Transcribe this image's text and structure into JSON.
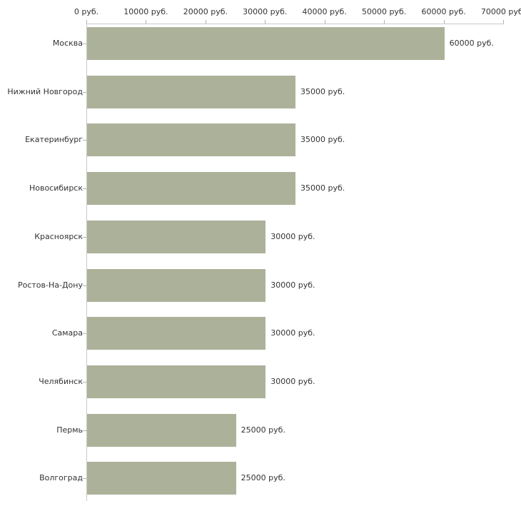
{
  "chart_data": {
    "type": "bar",
    "orientation": "horizontal",
    "title": "",
    "categories": [
      "Москва",
      "Нижний Новгород",
      "Екатеринбург",
      "Новосибирск",
      "Красноярск",
      "Ростов-На-Дону",
      "Самара",
      "Челябинск",
      "Пермь",
      "Волгоград"
    ],
    "values": [
      60000,
      35000,
      35000,
      35000,
      30000,
      30000,
      30000,
      30000,
      25000,
      25000
    ],
    "value_labels": [
      "60000 руб.",
      "35000 руб.",
      "35000 руб.",
      "35000 руб.",
      "30000 руб.",
      "30000 руб.",
      "30000 руб.",
      "30000 руб.",
      "25000 руб.",
      "25000 руб."
    ],
    "x_axis": {
      "position": "top",
      "unit": "руб.",
      "range": [
        0,
        70000
      ],
      "tick_values": [
        0,
        10000,
        20000,
        30000,
        40000,
        50000,
        60000,
        70000
      ],
      "tick_labels": [
        "0 руб.",
        "10000 руб.",
        "20000 руб.",
        "30000 руб.",
        "40000 руб.",
        "50000 руб.",
        "60000 руб.",
        "70000 руб."
      ]
    },
    "grid": false,
    "legend": false,
    "colors": {
      "bar": "#acb29a",
      "axis_line": "#c9c9c9",
      "tick": "#b3b59a",
      "text": "#333333",
      "background": "#ffffff"
    }
  }
}
